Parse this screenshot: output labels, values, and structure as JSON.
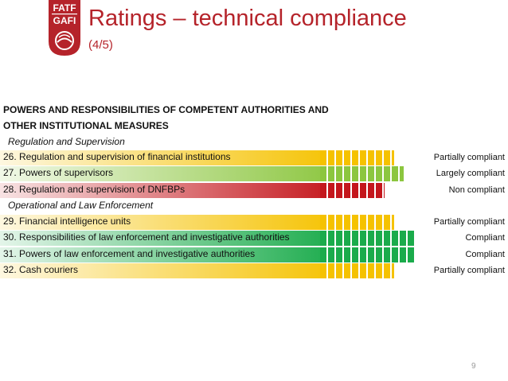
{
  "logo": {
    "line1": "FATF",
    "line2": "GAFI",
    "color": "#b5232a"
  },
  "title": "Ratings – technical compliance",
  "subtitle": "(4/5)",
  "header": {
    "line1": "POWERS AND RESPONSIBILITIES OF COMPETENT AUTHORITIES AND",
    "line2": "OTHER INSTITUTIONAL MEASURES"
  },
  "sections": [
    {
      "label": "Regulation and Supervision"
    },
    {
      "label": "Operational and Law Enforcement"
    }
  ],
  "colors": {
    "partially_compliant": "#f5c200",
    "largely_compliant": "#8cc63f",
    "non_compliant": "#c4161c",
    "compliant": "#1aab4b"
  },
  "recommendations": [
    {
      "label": "26. Regulation and supervision of financial institutions",
      "rating": "Partially compliant",
      "level": "partially_compliant"
    },
    {
      "label": "27. Powers of supervisors",
      "rating": "Largely compliant",
      "level": "largely_compliant"
    },
    {
      "label": "28. Regulation and supervision of DNFBPs",
      "rating": "Non compliant",
      "level": "non_compliant"
    },
    {
      "label": "29. Financial intelligence units",
      "rating": "Partially compliant",
      "level": "partially_compliant"
    },
    {
      "label": "30. Responsibilities of law enforcement and investigative authorities",
      "rating": "Compliant",
      "level": "compliant"
    },
    {
      "label": "31. Powers of law enforcement and investigative authorities",
      "rating": "Compliant",
      "level": "compliant"
    },
    {
      "label": "32. Cash couriers",
      "rating": "Partially compliant",
      "level": "partially_compliant"
    }
  ],
  "page_number": "9"
}
